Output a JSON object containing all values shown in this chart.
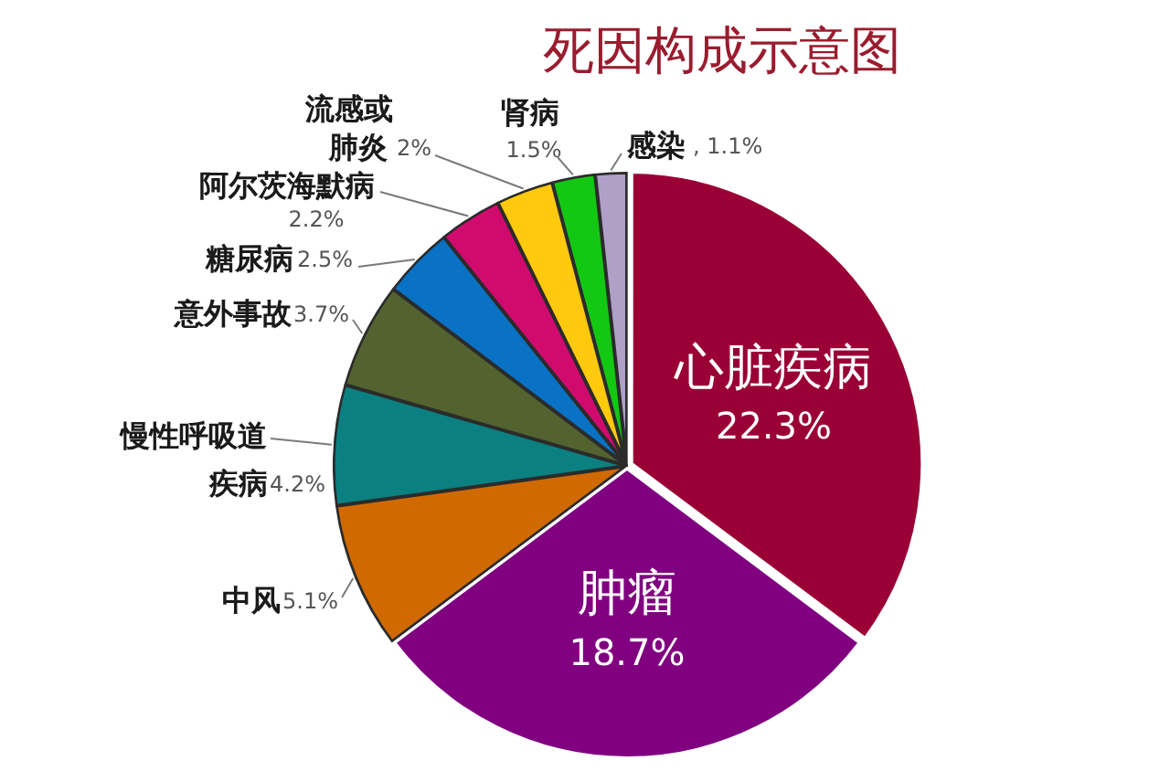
{
  "chart_data": {
    "type": "pie",
    "title": "死因构成示意图",
    "categories": [
      "心脏疾病",
      "肿瘤",
      "中风",
      "慢性呼吸道疾病",
      "意外事故",
      "糖尿病",
      "阿尔茨海默病",
      "流感或肺炎",
      "肾病",
      "感染"
    ],
    "values": [
      22.3,
      18.7,
      5.1,
      4.2,
      3.7,
      2.5,
      2.2,
      2,
      1.5,
      1.1
    ],
    "colors": [
      "#9a0036",
      "#800080",
      "#d06a00",
      "#0b8080",
      "#536330",
      "#0a72c4",
      "#d10a6e",
      "#ffc90e",
      "#13c813",
      "#b0a0c8"
    ],
    "value_labels": [
      "22.3%",
      "18.7%",
      "5.1%",
      "4.2%",
      "3.7%",
      "2.5%",
      "2.2%",
      "2%",
      "1.5%",
      ", 1.1%"
    ]
  }
}
